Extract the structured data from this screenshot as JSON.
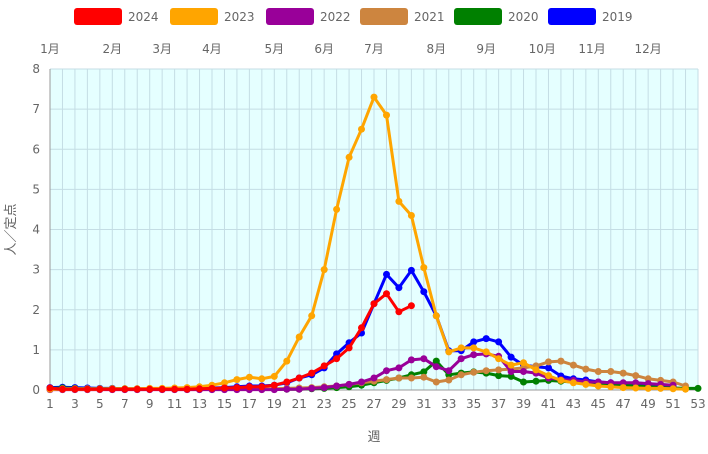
{
  "chart_data": {
    "type": "line",
    "xlabel": "週",
    "ylabel": "人／定点",
    "ylim": [
      0,
      8
    ],
    "yticks": [
      0,
      1,
      2,
      3,
      4,
      5,
      6,
      7,
      8
    ],
    "xlim": [
      1,
      53
    ],
    "xticks": [
      1,
      3,
      5,
      7,
      9,
      11,
      13,
      15,
      17,
      19,
      21,
      23,
      25,
      27,
      29,
      31,
      33,
      35,
      37,
      39,
      41,
      43,
      45,
      47,
      49,
      51,
      53
    ],
    "grid": true,
    "legend_position": "top",
    "months": [
      {
        "label": "1月",
        "week": 1
      },
      {
        "label": "2月",
        "week": 6
      },
      {
        "label": "3月",
        "week": 10
      },
      {
        "label": "4月",
        "week": 14
      },
      {
        "label": "5月",
        "week": 19
      },
      {
        "label": "6月",
        "week": 23
      },
      {
        "label": "7月",
        "week": 27
      },
      {
        "label": "8月",
        "week": 32
      },
      {
        "label": "9月",
        "week": 36
      },
      {
        "label": "10月",
        "week": 40.5
      },
      {
        "label": "11月",
        "week": 44.5
      },
      {
        "label": "12月",
        "week": 49
      }
    ],
    "series": [
      {
        "name": "2024",
        "color": "#ff0000",
        "start_week": 1,
        "values": [
          0.05,
          0.02,
          0.02,
          0.02,
          0.02,
          0.02,
          0.02,
          0.02,
          0.02,
          0.02,
          0.02,
          0.02,
          0.03,
          0.04,
          0.05,
          0.06,
          0.08,
          0.08,
          0.12,
          0.2,
          0.3,
          0.42,
          0.6,
          0.78,
          1.05,
          1.55,
          2.15,
          2.4,
          1.95,
          2.1
        ]
      },
      {
        "name": "2023",
        "color": "#ffa500",
        "start_week": 1,
        "values": [
          0.02,
          0.02,
          0.02,
          0.02,
          0.02,
          0.03,
          0.03,
          0.03,
          0.04,
          0.04,
          0.05,
          0.06,
          0.08,
          0.12,
          0.18,
          0.26,
          0.32,
          0.28,
          0.34,
          0.72,
          1.32,
          1.85,
          3.0,
          4.5,
          5.8,
          6.5,
          7.3,
          6.85,
          4.7,
          4.35,
          3.05,
          1.85,
          0.95,
          1.05,
          1.05,
          0.95,
          0.78,
          0.62,
          0.68,
          0.5,
          0.36,
          0.24,
          0.18,
          0.14,
          0.1,
          0.08,
          0.06,
          0.05,
          0.04,
          0.04,
          0.03,
          0.02
        ]
      },
      {
        "name": "2022",
        "color": "#990099",
        "start_week": 1,
        "values": [
          0.01,
          0.01,
          0.01,
          0.01,
          0.01,
          0.01,
          0.01,
          0.01,
          0.01,
          0.01,
          0.01,
          0.01,
          0.01,
          0.01,
          0.01,
          0.01,
          0.01,
          0.01,
          0.01,
          0.02,
          0.02,
          0.04,
          0.06,
          0.1,
          0.14,
          0.2,
          0.3,
          0.48,
          0.55,
          0.75,
          0.78,
          0.58,
          0.48,
          0.78,
          0.88,
          0.9,
          0.84,
          0.46,
          0.46,
          0.42,
          0.3,
          0.26,
          0.24,
          0.2,
          0.2,
          0.18,
          0.18,
          0.18,
          0.16,
          0.14,
          0.12
        ]
      },
      {
        "name": "2021",
        "color": "#cd853f",
        "start_week": 1,
        "values": [
          0.02,
          0.03,
          0.03,
          0.03,
          0.03,
          0.03,
          0.03,
          0.03,
          0.02,
          0.02,
          0.02,
          0.02,
          0.02,
          0.02,
          0.02,
          0.02,
          0.02,
          0.02,
          0.03,
          0.04,
          0.05,
          0.06,
          0.08,
          0.1,
          0.14,
          0.18,
          0.22,
          0.26,
          0.3,
          0.3,
          0.32,
          0.2,
          0.25,
          0.38,
          0.44,
          0.48,
          0.5,
          0.52,
          0.55,
          0.6,
          0.7,
          0.72,
          0.62,
          0.52,
          0.46,
          0.46,
          0.42,
          0.36,
          0.28,
          0.24,
          0.2,
          0.1
        ]
      },
      {
        "name": "2020",
        "color": "#008000",
        "start_week": 1,
        "values": [
          0.04,
          0.05,
          0.04,
          0.03,
          0.03,
          0.03,
          0.03,
          0.02,
          0.02,
          0.02,
          0.02,
          0.02,
          0.02,
          0.02,
          0.02,
          0.02,
          0.02,
          0.02,
          0.02,
          0.02,
          0.02,
          0.03,
          0.04,
          0.06,
          0.08,
          0.12,
          0.18,
          0.24,
          0.3,
          0.38,
          0.45,
          0.72,
          0.38,
          0.42,
          0.45,
          0.42,
          0.36,
          0.34,
          0.2,
          0.22,
          0.24,
          0.22,
          0.2,
          0.18,
          0.16,
          0.14,
          0.12,
          0.1,
          0.08,
          0.06,
          0.05,
          0.04,
          0.04
        ]
      },
      {
        "name": "2019",
        "color": "#0000ff",
        "start_week": 1,
        "values": [
          0.06,
          0.07,
          0.06,
          0.05,
          0.04,
          0.04,
          0.03,
          0.03,
          0.03,
          0.03,
          0.03,
          0.03,
          0.04,
          0.05,
          0.06,
          0.08,
          0.1,
          0.1,
          0.12,
          0.18,
          0.3,
          0.38,
          0.55,
          0.9,
          1.18,
          1.42,
          2.15,
          2.88,
          2.55,
          2.98,
          2.45,
          1.85,
          0.98,
          0.98,
          1.2,
          1.28,
          1.2,
          0.82,
          0.62,
          0.58,
          0.55,
          0.35,
          0.28,
          0.25,
          0.2,
          0.18,
          0.16,
          0.14,
          0.12,
          0.1,
          0.08
        ]
      }
    ]
  }
}
